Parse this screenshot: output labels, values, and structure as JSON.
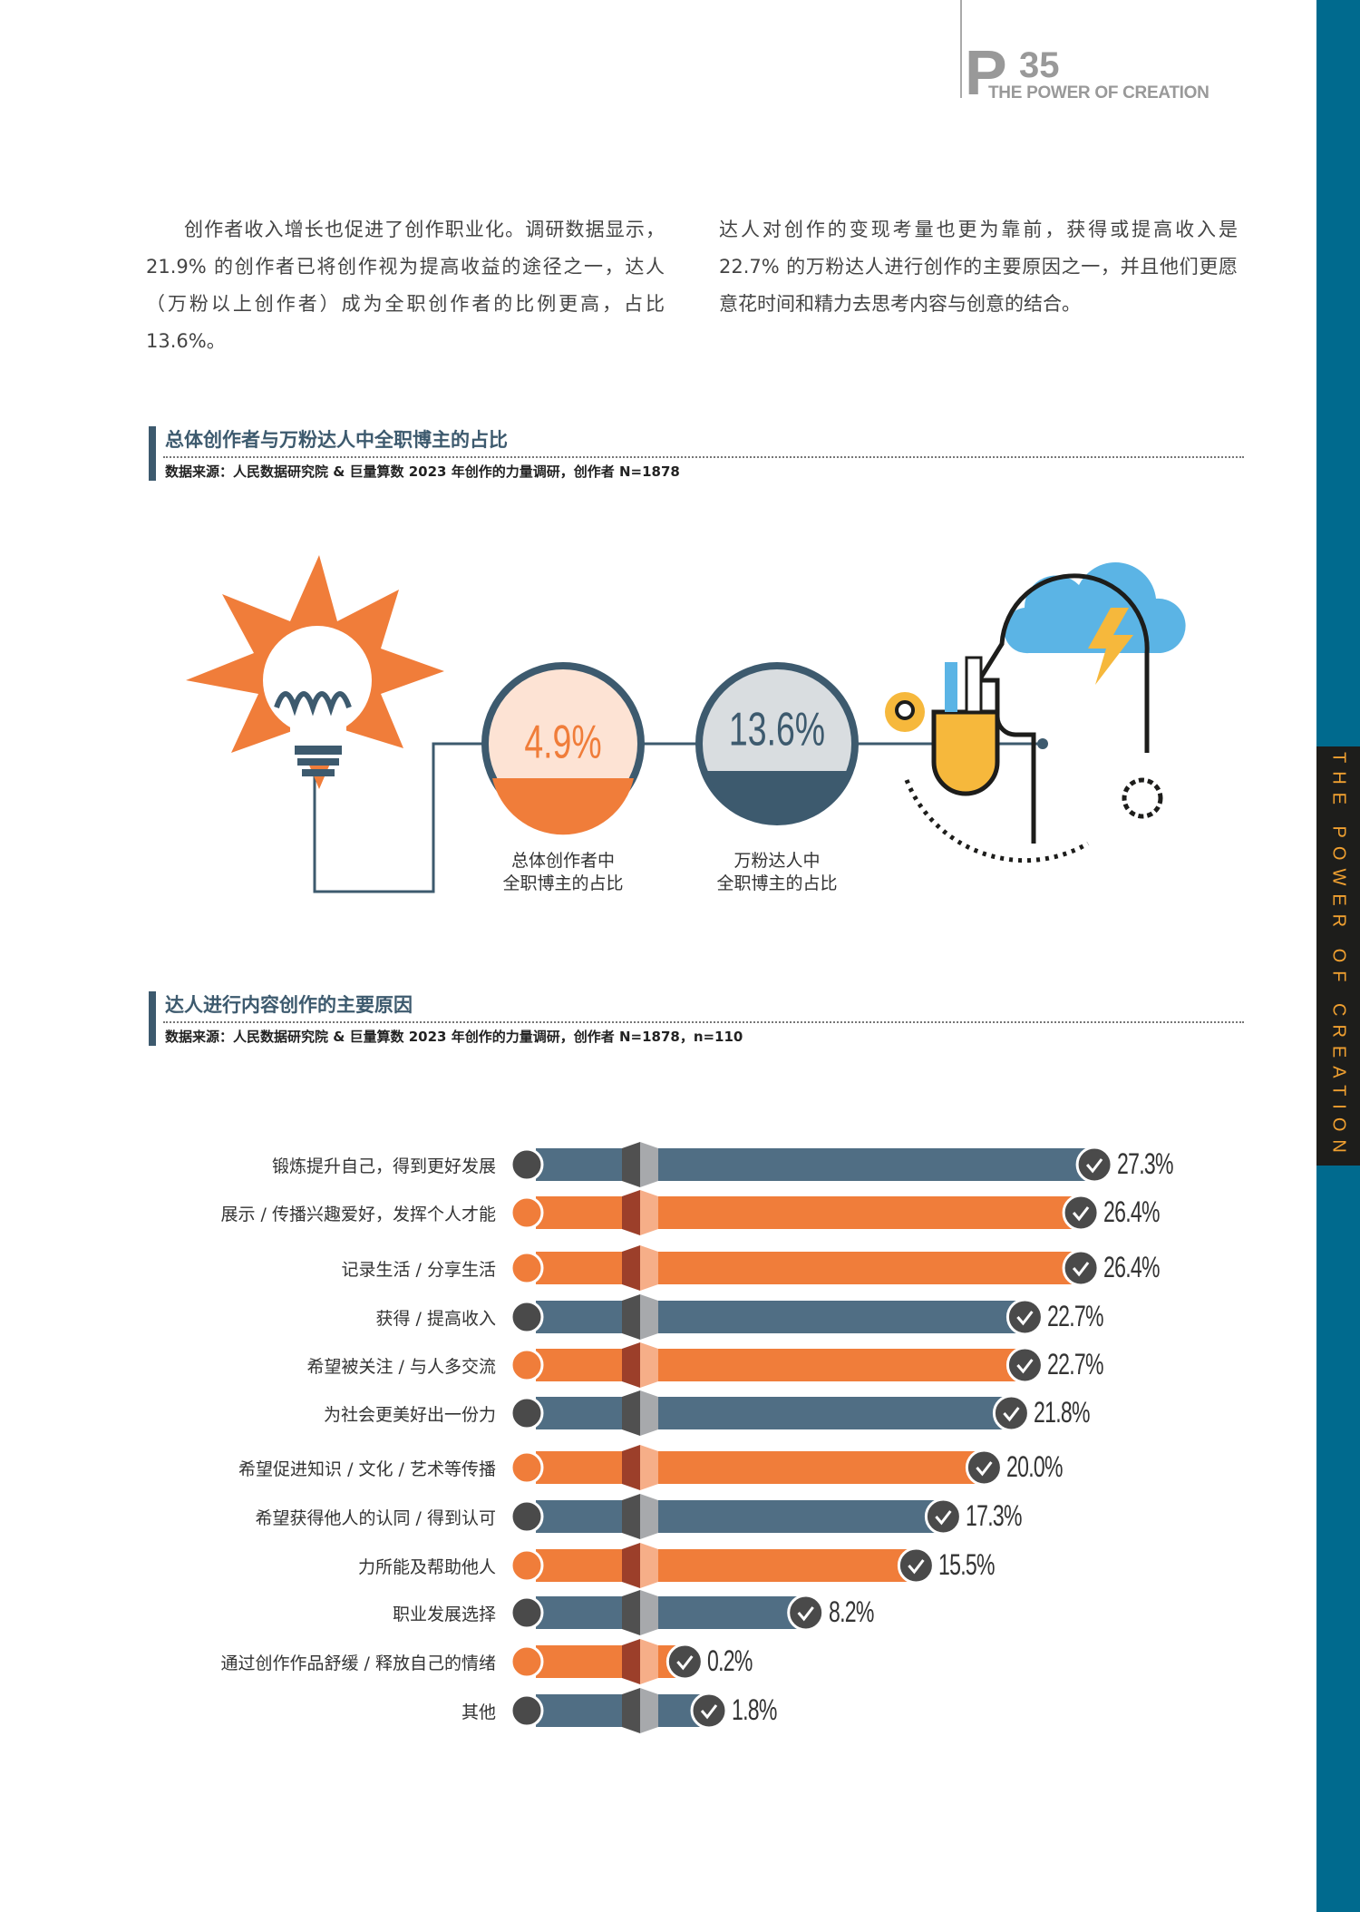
{
  "header": {
    "page_letter": "P",
    "page_number": "35",
    "tagline": "THE POWER OF CREATION"
  },
  "side_tab": "THE POWER OF CREATION",
  "intro": {
    "left": "创作者收入增长也促进了创作职业化。调研数据显示，21.9% 的创作者已将创作视为提高收益的途径之一，达人（万粉以上创作者）成为全职创作者的比例更高，占比 13.6%。",
    "right": "达人对创作的变现考量也更为靠前，获得或提高收入是 22.7% 的万粉达人进行创作的主要原因之一，并且他们更愿意花时间和精力去思考内容与创意的结合。"
  },
  "section1": {
    "title": "总体创作者与万粉达人中全职博主的占比",
    "source": "数据来源：人民数据研究院 & 巨量算数 2023 年创作的力量调研，创作者 N=1878"
  },
  "section2": {
    "title": "达人进行内容创作的主要原因",
    "source": "数据来源：人民数据研究院 & 巨量算数 2023 年创作的力量调研，创作者 N=1878，n=110"
  },
  "colors": {
    "blue": "#506e84",
    "orange": "#f07d3a",
    "accent": "#3d5a6e",
    "sidebar": "#006a8e"
  },
  "chart_data": [
    {
      "type": "gauge-circles",
      "unit": "%",
      "items": [
        {
          "label": "总体创作者中\n全职博主的占比",
          "value": 4.9,
          "display": "4.9%",
          "color": "#f07d3a"
        },
        {
          "label": "万粉达人中\n全职博主的占比",
          "value": 13.6,
          "display": "13.6%",
          "color": "#3d5a6e"
        }
      ]
    },
    {
      "type": "bar",
      "orientation": "horizontal",
      "unit": "%",
      "categories": [
        "锻炼提升自己，得到更好发展",
        "展示 / 传播兴趣爱好，发挥个人才能",
        "记录生活 / 分享生活",
        "获得 / 提高收入",
        "希望被关注 / 与人多交流",
        "为社会更美好出一份力",
        "希望促进知识 / 文化 / 艺术等传播",
        "希望获得他人的认同 / 得到认可",
        "力所能及帮助他人",
        "职业发展选择",
        "通过创作作品舒缓 / 释放自己的情绪",
        "其他"
      ],
      "values": [
        27.3,
        26.4,
        26.4,
        22.7,
        22.7,
        21.8,
        20.0,
        17.3,
        15.5,
        8.2,
        0.2,
        1.8
      ],
      "labels": [
        "27.3%",
        "26.4%",
        "26.4%",
        "22.7%",
        "22.7%",
        "21.8%",
        "20.0%",
        "17.3%",
        "15.5%",
        "8.2%",
        "0.2%",
        "1.8%"
      ],
      "bar_colors": [
        "blue",
        "orange",
        "orange",
        "blue",
        "orange",
        "blue",
        "orange",
        "blue",
        "orange",
        "blue",
        "orange",
        "blue"
      ]
    }
  ]
}
